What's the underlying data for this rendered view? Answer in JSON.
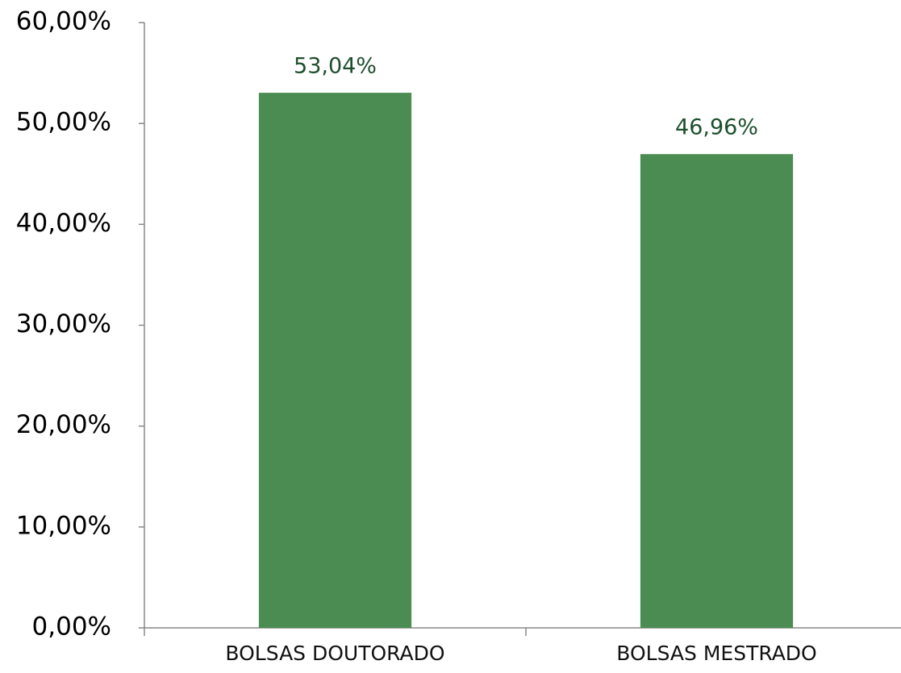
{
  "chart_data": {
    "type": "bar",
    "categories": [
      "BOLSAS DOUTORADO",
      "BOLSAS MESTRADO"
    ],
    "values": [
      53.04,
      46.96
    ],
    "value_labels": [
      "53,04%",
      "46,96%"
    ],
    "color": "#4a8c52",
    "ylim": [
      0,
      60
    ],
    "yticks": [
      {
        "value": 0,
        "label": "0,00%"
      },
      {
        "value": 10,
        "label": "10,00%"
      },
      {
        "value": 20,
        "label": "20,00%"
      },
      {
        "value": 30,
        "label": "30,00%"
      },
      {
        "value": 40,
        "label": "40,00%"
      },
      {
        "value": 50,
        "label": "50,00%"
      },
      {
        "value": 60,
        "label": "60,00%"
      }
    ],
    "grid": false
  }
}
